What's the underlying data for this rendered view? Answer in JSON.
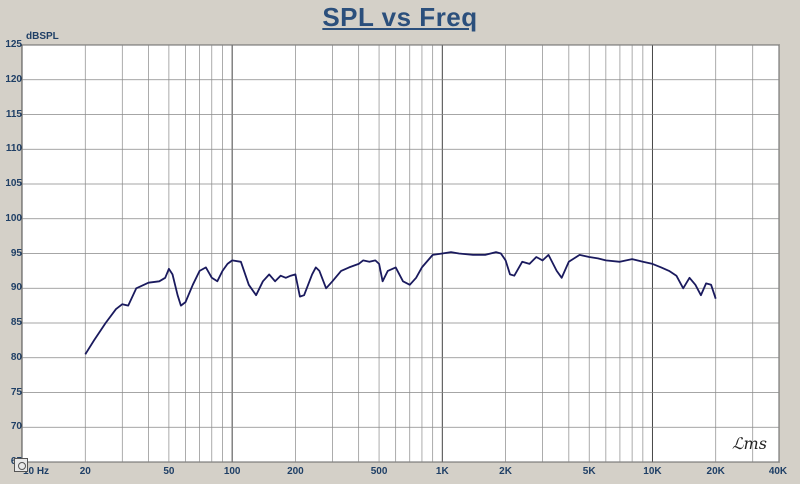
{
  "chart_data": {
    "type": "line",
    "title": "SPL vs Freq",
    "ylabel": "dBSPL",
    "xlabel": "",
    "x_scale": "log",
    "xlim": [
      10,
      40000
    ],
    "ylim": [
      65,
      125
    ],
    "grid": true,
    "y_ticks": [
      "125",
      "120",
      "115",
      "110",
      "105",
      "100",
      "95",
      "90",
      "85",
      "80",
      "75",
      "70",
      "65"
    ],
    "x_ticks": [
      "10 Hz",
      "20",
      "50",
      "100",
      "200",
      "500",
      "1K",
      "2K",
      "5K",
      "10K",
      "20K",
      "40K"
    ],
    "series": [
      {
        "color": "#1a1a5e",
        "x": [
          20,
          22,
          25,
          28,
          30,
          32,
          35,
          40,
          45,
          48,
          50,
          52,
          55,
          57,
          60,
          65,
          70,
          75,
          80,
          85,
          90,
          95,
          100,
          110,
          120,
          130,
          140,
          150,
          160,
          170,
          180,
          190,
          200,
          210,
          220,
          240,
          250,
          260,
          280,
          300,
          330,
          360,
          400,
          420,
          450,
          480,
          500,
          520,
          550,
          600,
          650,
          700,
          750,
          800,
          900,
          1000,
          1100,
          1200,
          1400,
          1600,
          1800,
          1900,
          2000,
          2100,
          2200,
          2400,
          2600,
          2800,
          3000,
          3200,
          3500,
          3700,
          4000,
          4500,
          5000,
          5500,
          6000,
          7000,
          7500,
          8000,
          9000,
          10000,
          11000,
          12000,
          13000,
          14000,
          15000,
          16000,
          17000,
          18000,
          19000,
          20000
        ],
        "values": [
          80.5,
          82.5,
          85,
          87,
          87.7,
          87.5,
          90,
          90.8,
          91,
          91.5,
          92.8,
          92,
          89,
          87.5,
          88,
          90.5,
          92.5,
          93,
          91.5,
          91,
          92.5,
          93.5,
          94,
          93.8,
          90.5,
          89,
          91,
          92,
          91,
          91.8,
          91.5,
          91.8,
          92,
          88.8,
          89,
          92,
          93,
          92.5,
          90,
          91,
          92.5,
          93,
          93.5,
          94,
          93.8,
          94,
          93.5,
          91,
          92.5,
          93,
          91,
          90.5,
          91.5,
          93,
          94.8,
          95,
          95.2,
          95,
          94.8,
          94.8,
          95.2,
          95,
          94,
          92,
          91.8,
          93.8,
          93.5,
          94.5,
          94,
          94.8,
          92.5,
          91.5,
          93.8,
          94.8,
          94.5,
          94.3,
          94,
          93.8,
          94,
          94.2,
          93.8,
          93.5,
          93,
          92.5,
          91.8,
          90,
          91.5,
          90.5,
          89,
          90.7,
          90.5,
          88.5
        ]
      }
    ]
  },
  "logo_text": "LMS"
}
